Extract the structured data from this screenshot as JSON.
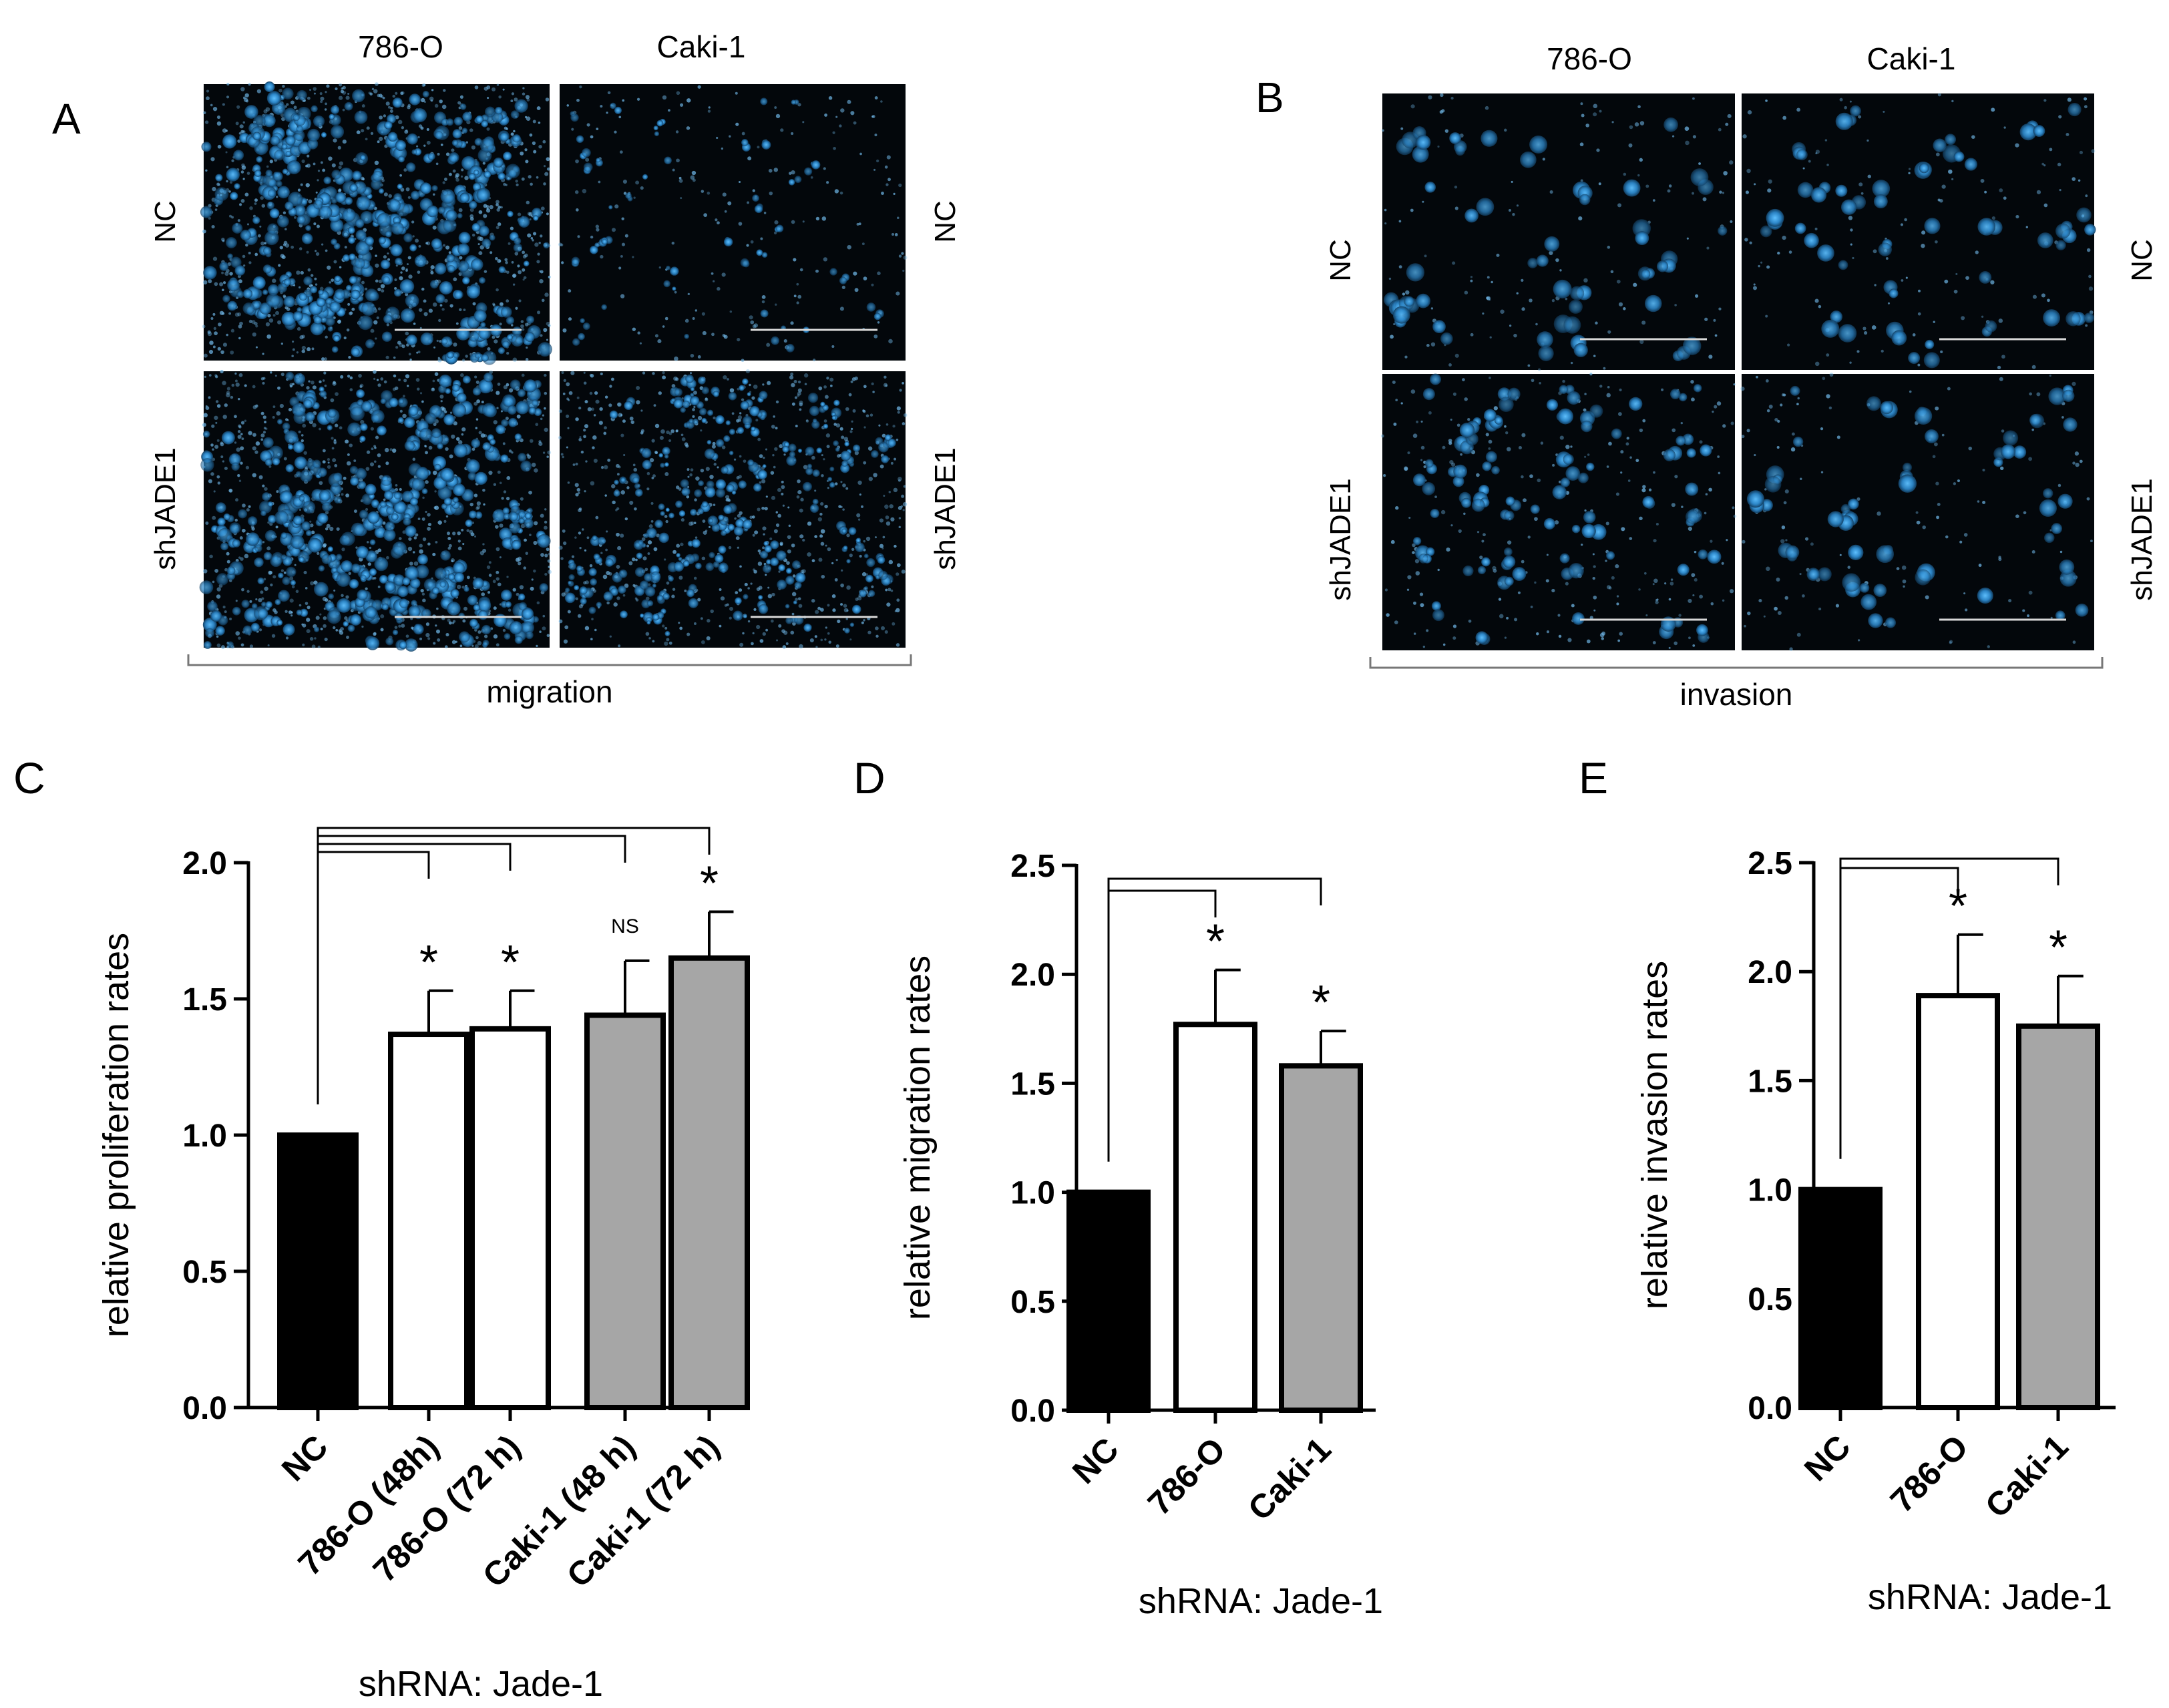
{
  "panels": {
    "A": {
      "letter": "A",
      "columns": [
        "786-O",
        "Caki-1"
      ],
      "rows": [
        "NC",
        "shJADE1"
      ],
      "right_rows": [
        "NC",
        "shJADE1"
      ],
      "caption": "migration"
    },
    "B": {
      "letter": "B",
      "columns": [
        "786-O",
        "Caki-1"
      ],
      "rows": [
        "NC",
        "shJADE1"
      ],
      "right_rows": [
        "NC",
        "shJADE1"
      ],
      "caption": "invasion"
    }
  },
  "chart_data": [
    {
      "panel": "C",
      "type": "bar",
      "categories": [
        "NC",
        "786-O (48h)",
        "786-O (72 h)",
        "Caki-1 (48 h)",
        "Caki-1 (72 h)"
      ],
      "values": [
        1.0,
        1.37,
        1.39,
        1.44,
        1.65
      ],
      "errors": [
        0,
        0.16,
        0.14,
        0.2,
        0.17
      ],
      "fills": [
        "#000000",
        "#ffffff",
        "#ffffff",
        "#a6a6a6",
        "#a6a6a6"
      ],
      "significance": [
        "",
        "*",
        "*",
        "NS",
        "*"
      ],
      "ylabel": "relative proliferation rates",
      "xlabel": "shRNA: Jade-1",
      "ylim": [
        0,
        2.0
      ],
      "yticks": [
        "0.0",
        "0.5",
        "1.0",
        "1.5",
        "2.0"
      ]
    },
    {
      "panel": "D",
      "type": "bar",
      "categories": [
        "NC",
        "786-O",
        "Caki-1"
      ],
      "values": [
        1.0,
        1.77,
        1.58
      ],
      "errors": [
        0,
        0.25,
        0.16
      ],
      "fills": [
        "#000000",
        "#ffffff",
        "#a6a6a6"
      ],
      "significance": [
        "",
        "*",
        "*"
      ],
      "ylabel": "relative migration rates",
      "xlabel": "shRNA: Jade-1",
      "ylim": [
        0,
        2.5
      ],
      "yticks": [
        "0.0",
        "0.5",
        "1.0",
        "1.5",
        "2.0",
        "2.5"
      ]
    },
    {
      "panel": "E",
      "type": "bar",
      "categories": [
        "NC",
        "786-O",
        "Caki-1"
      ],
      "values": [
        1.0,
        1.89,
        1.75
      ],
      "errors": [
        0,
        0.28,
        0.23
      ],
      "fills": [
        "#000000",
        "#ffffff",
        "#a6a6a6"
      ],
      "significance": [
        "",
        "*",
        "*"
      ],
      "ylabel": "relative invasion rates",
      "xlabel": "shRNA: Jade-1",
      "ylim": [
        0,
        2.5
      ],
      "yticks": [
        "0.0",
        "0.5",
        "1.0",
        "1.5",
        "2.0",
        "2.5"
      ]
    }
  ]
}
